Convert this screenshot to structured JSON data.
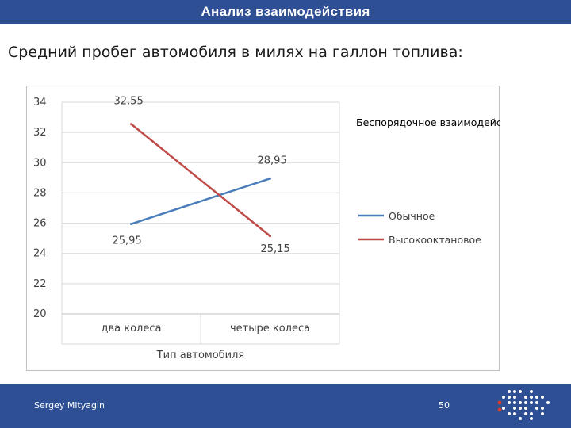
{
  "slide": {
    "header_title": "Анализ взаимодействия",
    "subtitle": "Средний пробег автомобиля в милях на галлон топлива:",
    "author": "Sergey Mityagin",
    "page_number": "50"
  },
  "colors": {
    "header_bg": "#2e4f93",
    "series_regular": "#4a7ebb",
    "series_premium": "#be4b48"
  },
  "chart_data": {
    "type": "line",
    "annotation": "Беспорядочное взаимодействие",
    "categories": [
      "два колеса",
      "четыре колеса"
    ],
    "xlabel": "Тип автомобиля",
    "ylabel": "",
    "ylim": [
      20,
      34
    ],
    "yticks": [
      "20",
      "22",
      "24",
      "26",
      "28",
      "30",
      "32",
      "34"
    ],
    "grid": true,
    "legend_position": "right",
    "series": [
      {
        "name": "Обычное",
        "values": [
          25.95,
          28.95
        ],
        "labels": [
          "25,95",
          "28,95"
        ],
        "color": "#4a7ebb"
      },
      {
        "name": "Высокооктановое",
        "values": [
          32.55,
          25.15
        ],
        "labels": [
          "32,55",
          "25,15"
        ],
        "color": "#be4b48"
      }
    ]
  }
}
